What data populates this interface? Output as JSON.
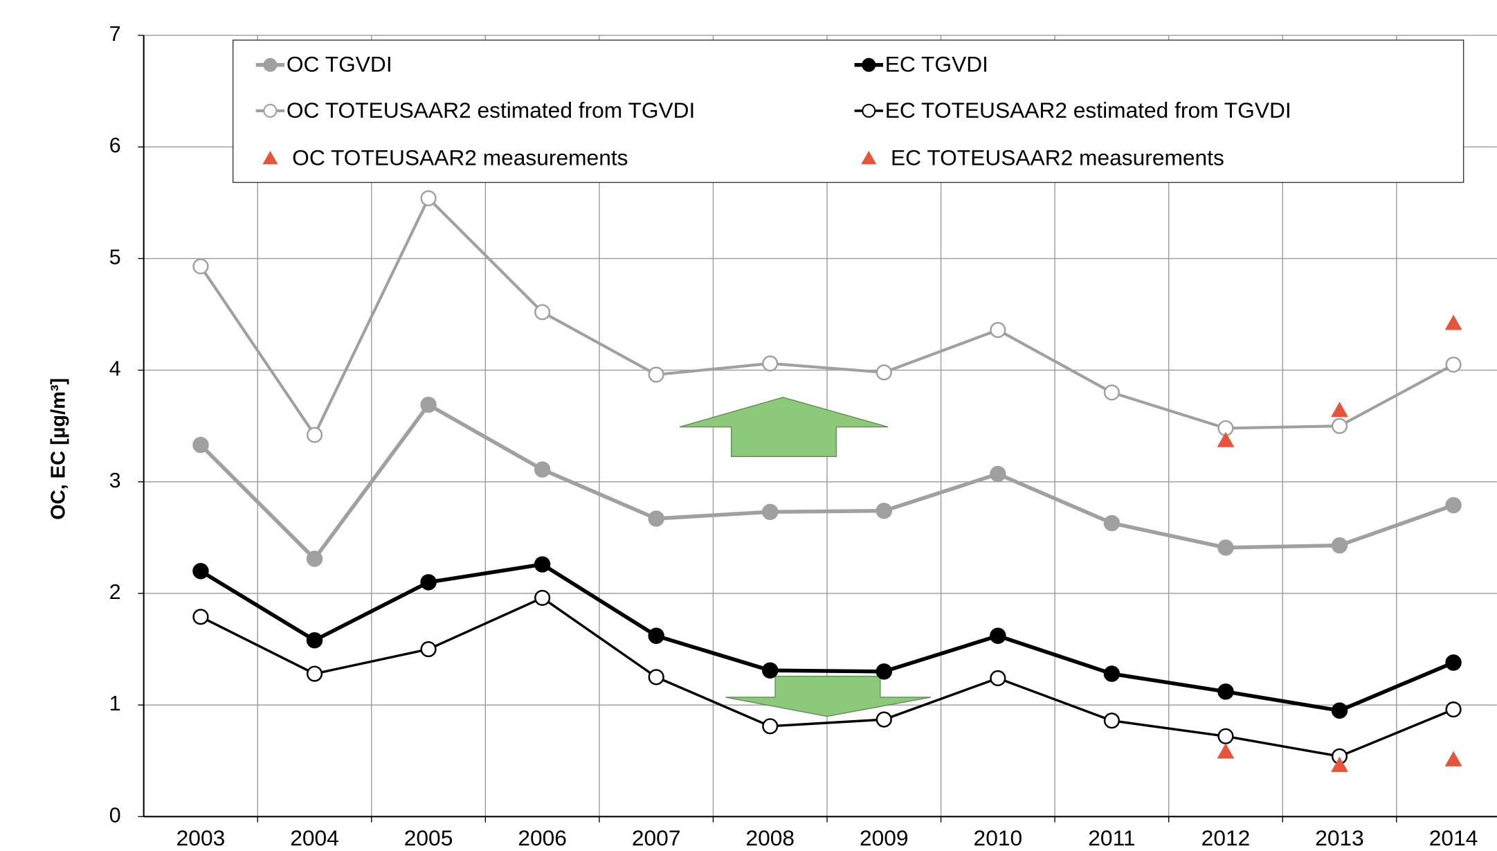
{
  "chart_data": {
    "type": "line",
    "y_label": "OC, EC [µg/m³]",
    "categories": [
      "2003",
      "2004",
      "2005",
      "2006",
      "2007",
      "2008",
      "2009",
      "2010",
      "2011",
      "2012",
      "2013",
      "2014"
    ],
    "ylim": [
      0,
      7
    ],
    "yticks": [
      0,
      1,
      2,
      3,
      4,
      5,
      6,
      7
    ],
    "grid": true,
    "series": [
      {
        "name": "OC TGVDI",
        "color": "#a0a0a0",
        "marker": "filled",
        "line": true,
        "values": [
          3.33,
          2.31,
          3.69,
          3.11,
          2.67,
          2.73,
          2.74,
          3.07,
          2.63,
          2.41,
          2.43,
          2.79
        ]
      },
      {
        "name": "EC TGVDI",
        "color": "#000000",
        "marker": "filled",
        "line": true,
        "values": [
          2.2,
          1.58,
          2.1,
          2.26,
          1.62,
          1.31,
          1.3,
          1.62,
          1.28,
          1.12,
          0.95,
          1.38
        ]
      },
      {
        "name": "OC TOTEUSAAR2 estimated from TGVDI",
        "color": "#a0a0a0",
        "marker": "open",
        "line": true,
        "values": [
          4.93,
          3.42,
          5.54,
          4.52,
          3.96,
          4.06,
          3.98,
          4.36,
          3.8,
          3.48,
          3.5,
          4.05
        ]
      },
      {
        "name": "EC TOTEUSAAR2 estimated from TGVDI",
        "color": "#000000",
        "marker": "open",
        "line": true,
        "values": [
          1.79,
          1.28,
          1.5,
          1.96,
          1.25,
          0.81,
          0.87,
          1.24,
          0.86,
          0.72,
          0.54,
          0.96
        ]
      },
      {
        "name": "OC TOTEUSAAR2 measurements",
        "color": "#e8543a",
        "marker": "triangle",
        "line": false,
        "values": [
          null,
          null,
          null,
          null,
          null,
          null,
          null,
          null,
          null,
          3.37,
          3.64,
          4.42
        ]
      },
      {
        "name": "EC TOTEUSAAR2 measurements",
        "color": "#e8543a",
        "marker": "triangle",
        "line": false,
        "values": [
          null,
          null,
          null,
          null,
          null,
          null,
          null,
          null,
          null,
          0.58,
          0.46,
          0.51
        ]
      }
    ]
  }
}
